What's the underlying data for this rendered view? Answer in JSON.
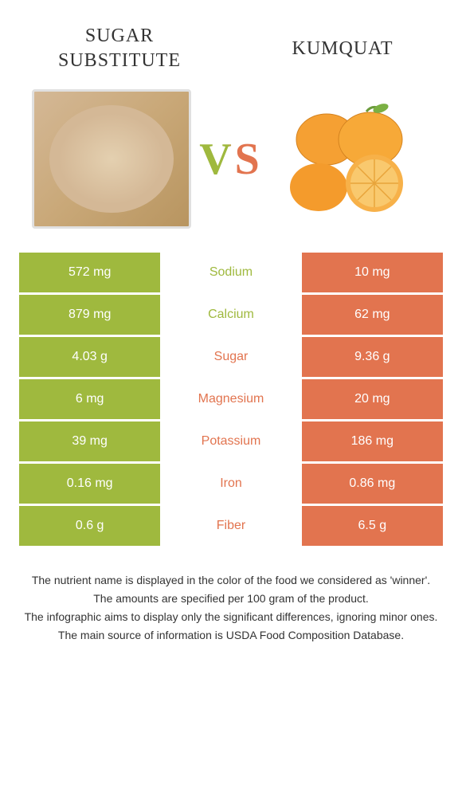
{
  "header": {
    "left_title_line1": "Sugar",
    "left_title_line2": "substitute",
    "right_title": "Kumquat",
    "vs_label": "VS"
  },
  "colors": {
    "left": "#9fb93e",
    "right": "#e2744f",
    "text_dark": "#333333",
    "background": "#ffffff"
  },
  "nutrients": [
    {
      "name": "Sodium",
      "left": "572 mg",
      "right": "10 mg",
      "winner": "left"
    },
    {
      "name": "Calcium",
      "left": "879 mg",
      "right": "62 mg",
      "winner": "left"
    },
    {
      "name": "Sugar",
      "left": "4.03 g",
      "right": "9.36 g",
      "winner": "right"
    },
    {
      "name": "Magnesium",
      "left": "6 mg",
      "right": "20 mg",
      "winner": "right"
    },
    {
      "name": "Potassium",
      "left": "39 mg",
      "right": "186 mg",
      "winner": "right"
    },
    {
      "name": "Iron",
      "left": "0.16 mg",
      "right": "0.86 mg",
      "winner": "right"
    },
    {
      "name": "Fiber",
      "left": "0.6 g",
      "right": "6.5 g",
      "winner": "right"
    }
  ],
  "footer": {
    "line1": "The nutrient name is displayed in the color of the food we considered as 'winner'.",
    "line2": "The amounts are specified per 100 gram of the product.",
    "line3": "The infographic aims to display only the significant differences, ignoring minor ones.",
    "line4": "The main source of information is USDA Food Composition Database."
  }
}
